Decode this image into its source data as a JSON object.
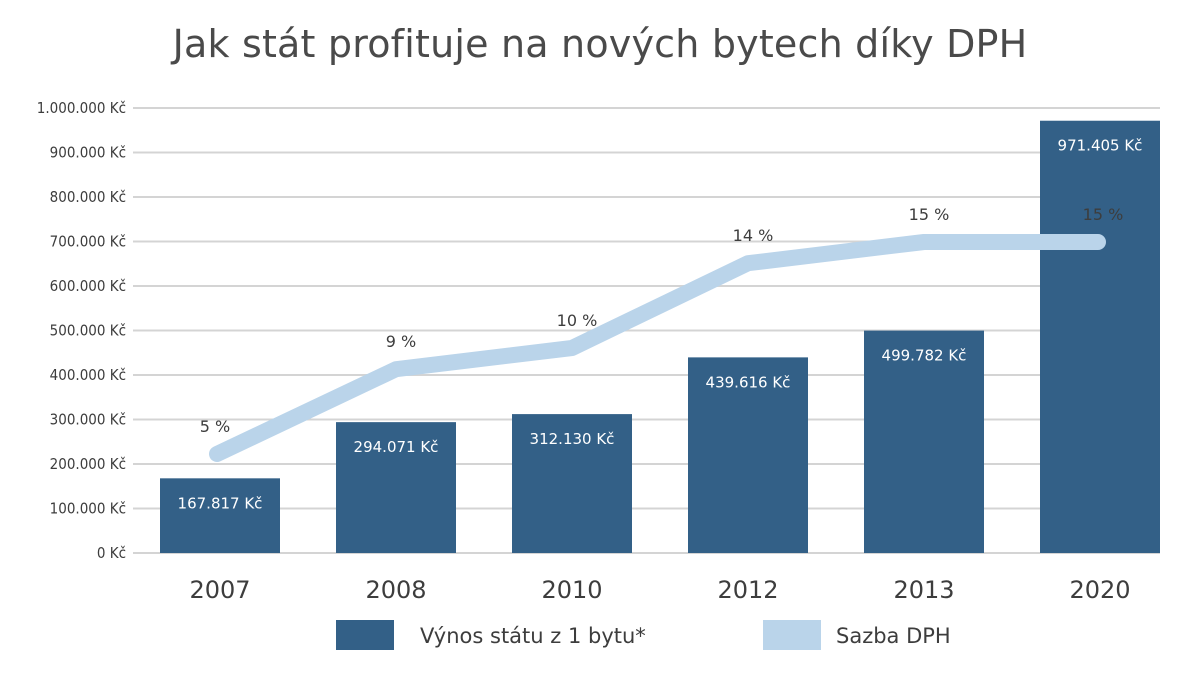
{
  "chart_data": {
    "type": "bar",
    "title": "Jak stát profituje na nových bytech díky DPH",
    "categories": [
      "2007",
      "2008",
      "2010",
      "2012",
      "2013",
      "2020"
    ],
    "series": [
      {
        "name": "Výnos státu z 1 bytu*",
        "type": "bar",
        "color": "#336087",
        "values": [
          167817,
          294071,
          312130,
          439616,
          499782,
          971405
        ],
        "labels": [
          "167.817 Kč",
          "294.071 Kč",
          "312.130 Kč",
          "439.616 Kč",
          "499.782 Kč",
          "971.405 Kč"
        ]
      },
      {
        "name": "Sazba DPH",
        "type": "line",
        "color": "#bad4ea",
        "values": [
          5,
          9,
          10,
          14,
          15,
          15
        ],
        "labels": [
          "5 %",
          "9 %",
          "10 %",
          "14 %",
          "15 %",
          "15 %"
        ]
      }
    ],
    "ylim": [
      0,
      1000000
    ],
    "yticks": [
      "0 Kč",
      "100.000 Kč",
      "200.000 Kč",
      "300.000 Kč",
      "400.000 Kč",
      "500.000 Kč",
      "600.000 Kč",
      "700.000 Kč",
      "800.000 Kč",
      "900.000 Kč",
      "1.000.000 Kč"
    ],
    "grid": true,
    "legend_position": "bottom"
  }
}
